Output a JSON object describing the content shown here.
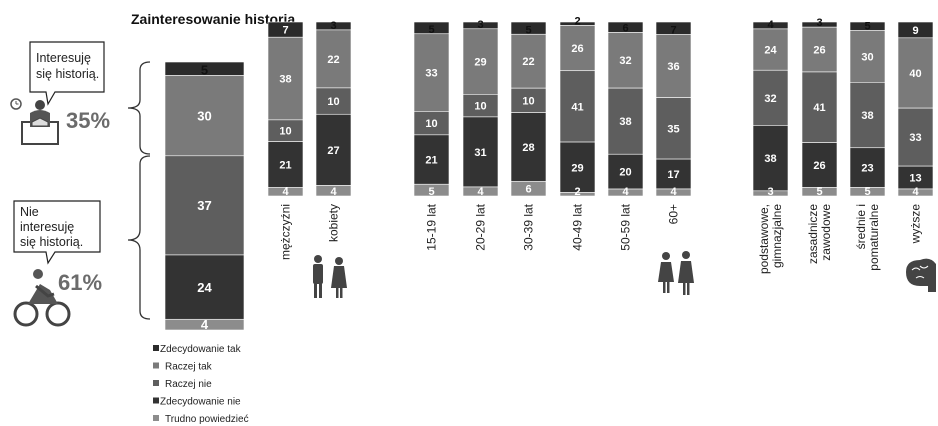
{
  "colors": {
    "zdecydowanie_tak": "#2b2b2b",
    "raczej_tak": "#7a7a7a",
    "raczej_nie": "#5e5e5e",
    "zdecydowanie_nie": "#333333",
    "trudno": "#8c8c8c"
  },
  "chart_data": {
    "type": "bar",
    "stacked": true,
    "title": "Zainteresowanie historią",
    "legend": {
      "placement": "bottom-left",
      "entries": [
        "Zdecydowanie tak",
        "Raczej tak",
        "Raczej nie",
        "Zdecydowanie nie",
        "Trudno powiedzieć"
      ]
    },
    "summary": {
      "interested": {
        "text_line1": "Interesuję",
        "text_line2": "się historią.",
        "percent": "35%"
      },
      "not_interested": {
        "text_line1": "Nie",
        "text_line2": "interesuję",
        "text_line3": "się historią.",
        "percent": "61%"
      }
    },
    "overall": {
      "category": "Ogółem",
      "values": [
        5,
        30,
        37,
        24,
        4
      ]
    },
    "groups": [
      {
        "name": "gender",
        "categories": [
          "mężczyźni",
          "kobiety"
        ],
        "series_values": [
          [
            7,
            38,
            10,
            21,
            4
          ],
          [
            3,
            22,
            10,
            27,
            4
          ]
        ]
      },
      {
        "name": "age",
        "categories": [
          "15-19 lat",
          "20-29 lat",
          "30-39 lat",
          "40-49 lat",
          "50-59 lat",
          "60+"
        ],
        "series_values": [
          [
            5,
            33,
            10,
            21,
            5
          ],
          [
            3,
            29,
            10,
            31,
            4
          ],
          [
            5,
            22,
            10,
            28,
            6
          ],
          [
            2,
            26,
            41,
            29,
            2
          ],
          [
            6,
            32,
            38,
            20,
            4
          ],
          [
            7,
            36,
            35,
            17,
            4
          ]
        ]
      },
      {
        "name": "education",
        "categories": [
          "podstawowe, gimnazjalne",
          "zasadnicze zawodowe",
          "średnie i pomaturalne",
          "wyższe"
        ],
        "series_values": [
          [
            4,
            24,
            32,
            38,
            3
          ],
          [
            3,
            26,
            41,
            26,
            5
          ],
          [
            5,
            30,
            38,
            23,
            5
          ],
          [
            9,
            40,
            33,
            13,
            4
          ]
        ]
      }
    ]
  }
}
